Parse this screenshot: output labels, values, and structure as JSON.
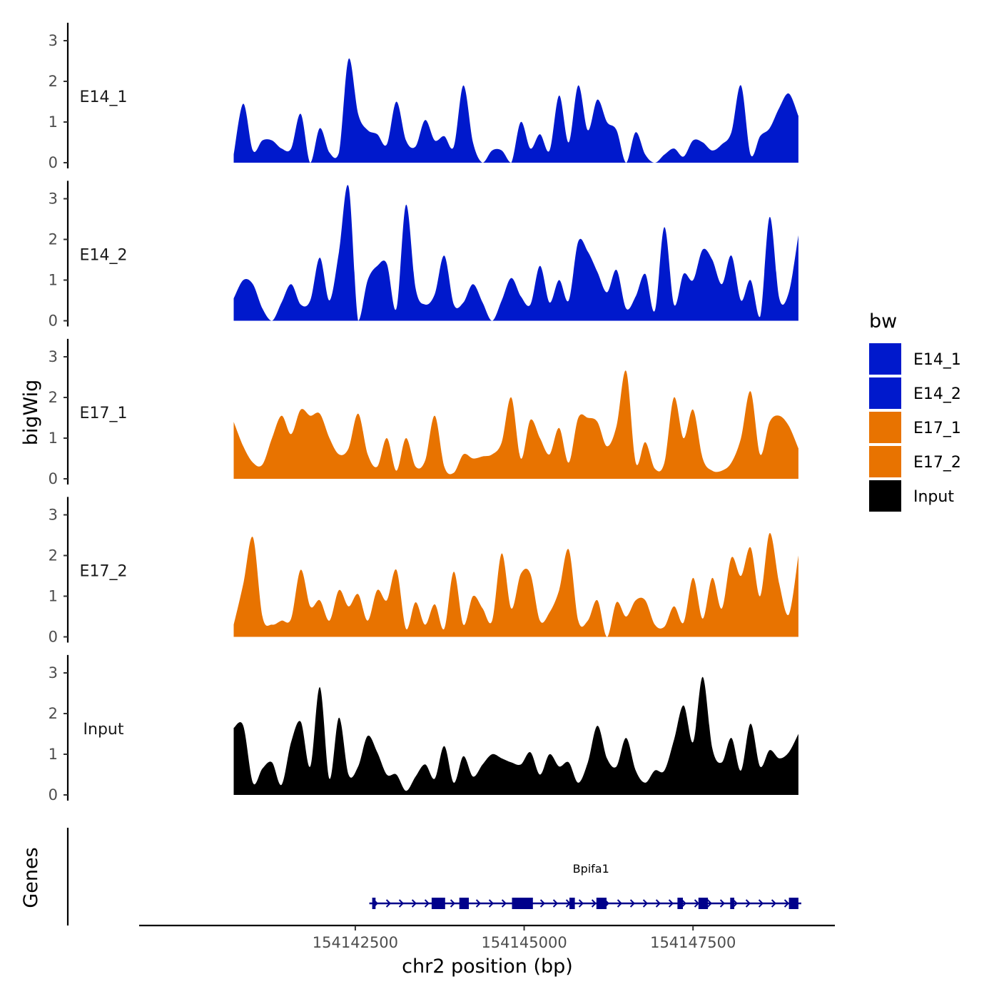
{
  "chart_data": {
    "type": "area",
    "facet_y_title": "bigWig",
    "genes_panel_title": "Genes",
    "xlabel": "chr2 position (bp)",
    "xlim": [
      154139300,
      154149600
    ],
    "x_ticks": [
      154142500,
      154145000,
      154147500
    ],
    "x_tick_labels": [
      "154142500",
      "154145000",
      "154147500"
    ],
    "signal_xlim": [
      154140700,
      154149060
    ],
    "ylim": [
      0,
      3.3
    ],
    "y_ticks": [
      0,
      1,
      2,
      3
    ],
    "y_tick_labels": [
      "0",
      "1",
      "2",
      "3"
    ],
    "legend": {
      "title": "bw",
      "entries": [
        {
          "label": "E14_1",
          "color": "#0019CC"
        },
        {
          "label": "E14_2",
          "color": "#0019CC"
        },
        {
          "label": "E17_1",
          "color": "#E87300"
        },
        {
          "label": "E17_2",
          "color": "#E87300"
        },
        {
          "label": "Input",
          "color": "#000000"
        }
      ]
    },
    "tracks": [
      {
        "name": "E14_1",
        "color": "#0019CC",
        "values": [
          0.2,
          1.45,
          0.3,
          0.55,
          0.55,
          0.35,
          0.35,
          1.2,
          0.0,
          0.85,
          0.25,
          0.25,
          2.55,
          1.2,
          0.8,
          0.7,
          0.45,
          1.5,
          0.55,
          0.4,
          1.05,
          0.55,
          0.65,
          0.4,
          1.9,
          0.5,
          0.0,
          0.3,
          0.3,
          0.0,
          1.0,
          0.35,
          0.7,
          0.3,
          1.65,
          0.5,
          1.9,
          0.8,
          1.55,
          1.0,
          0.8,
          0.0,
          0.75,
          0.2,
          0.0,
          0.2,
          0.35,
          0.15,
          0.55,
          0.5,
          0.3,
          0.45,
          0.75,
          1.9,
          0.2,
          0.65,
          0.85,
          1.35,
          1.7,
          1.15
        ]
      },
      {
        "name": "E14_2",
        "color": "#0019CC",
        "values": [
          0.55,
          1.0,
          0.9,
          0.3,
          0.0,
          0.45,
          0.9,
          0.4,
          0.5,
          1.55,
          0.5,
          1.7,
          3.3,
          0.0,
          1.0,
          1.35,
          1.4,
          0.3,
          2.85,
          0.8,
          0.4,
          0.65,
          1.6,
          0.4,
          0.45,
          0.9,
          0.45,
          0.0,
          0.5,
          1.05,
          0.6,
          0.4,
          1.35,
          0.45,
          1.0,
          0.5,
          1.95,
          1.7,
          1.2,
          0.7,
          1.25,
          0.3,
          0.6,
          1.15,
          0.25,
          2.3,
          0.4,
          1.15,
          1.0,
          1.75,
          1.5,
          0.9,
          1.6,
          0.5,
          1.0,
          0.1,
          2.55,
          0.55,
          0.7,
          2.1
        ]
      },
      {
        "name": "E17_1",
        "color": "#E87300",
        "values": [
          1.4,
          0.8,
          0.4,
          0.35,
          1.0,
          1.55,
          1.1,
          1.7,
          1.55,
          1.6,
          1.0,
          0.6,
          0.75,
          1.6,
          0.6,
          0.3,
          1.0,
          0.2,
          1.0,
          0.3,
          0.45,
          1.55,
          0.3,
          0.15,
          0.6,
          0.5,
          0.55,
          0.6,
          0.9,
          2.0,
          0.5,
          1.45,
          1.0,
          0.6,
          1.25,
          0.4,
          1.5,
          1.5,
          1.4,
          0.8,
          1.3,
          2.65,
          0.4,
          0.9,
          0.25,
          0.4,
          2.0,
          1.0,
          1.7,
          0.5,
          0.2,
          0.2,
          0.4,
          1.0,
          2.15,
          0.6,
          1.4,
          1.55,
          1.3,
          0.75
        ]
      },
      {
        "name": "E17_2",
        "color": "#E87300",
        "values": [
          0.3,
          1.3,
          2.45,
          0.5,
          0.3,
          0.4,
          0.45,
          1.65,
          0.75,
          0.9,
          0.4,
          1.15,
          0.75,
          1.05,
          0.4,
          1.15,
          0.9,
          1.65,
          0.2,
          0.85,
          0.3,
          0.8,
          0.2,
          1.6,
          0.3,
          1.0,
          0.7,
          0.4,
          2.05,
          0.7,
          1.55,
          1.55,
          0.4,
          0.6,
          1.15,
          2.15,
          0.4,
          0.4,
          0.9,
          0.0,
          0.85,
          0.5,
          0.9,
          0.9,
          0.3,
          0.25,
          0.75,
          0.35,
          1.45,
          0.45,
          1.45,
          0.7,
          1.95,
          1.5,
          2.2,
          1.0,
          2.55,
          1.3,
          0.55,
          2.0
        ]
      },
      {
        "name": "Input",
        "color": "#000000",
        "values": [
          1.65,
          1.7,
          0.3,
          0.65,
          0.8,
          0.25,
          1.3,
          1.8,
          0.7,
          2.65,
          0.4,
          1.9,
          0.5,
          0.7,
          1.45,
          1.05,
          0.5,
          0.5,
          0.1,
          0.45,
          0.75,
          0.4,
          1.2,
          0.3,
          0.95,
          0.45,
          0.75,
          1.0,
          0.9,
          0.8,
          0.75,
          1.05,
          0.5,
          1.0,
          0.7,
          0.8,
          0.3,
          0.8,
          1.7,
          0.9,
          0.7,
          1.4,
          0.6,
          0.3,
          0.6,
          0.6,
          1.35,
          2.2,
          1.3,
          2.9,
          1.15,
          0.8,
          1.4,
          0.6,
          1.75,
          0.7,
          1.1,
          0.9,
          1.05,
          1.5
        ]
      }
    ],
    "gene": {
      "name": "Bpifa1",
      "strand": "+",
      "color": "#00008B",
      "start": 154142750,
      "end": 154149060,
      "exons": [
        [
          154142750,
          154142800
        ],
        [
          154143630,
          154143830
        ],
        [
          154144040,
          154144180
        ],
        [
          154144820,
          154145130
        ],
        [
          154145670,
          154145750
        ],
        [
          154146070,
          154146220
        ],
        [
          154147270,
          154147350
        ],
        [
          154147580,
          154147720
        ],
        [
          154148050,
          154148110
        ],
        [
          154148920,
          154149060
        ]
      ]
    }
  }
}
